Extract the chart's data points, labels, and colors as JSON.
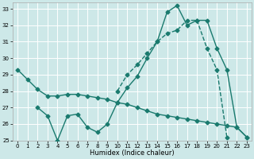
{
  "xlabel": "Humidex (Indice chaleur)",
  "bg_color": "#cde8e8",
  "grid_color": "#ffffff",
  "line_color": "#1a7a6e",
  "xlim": [
    -0.5,
    23.5
  ],
  "ylim": [
    25,
    33.4
  ],
  "xticks": [
    0,
    1,
    2,
    3,
    4,
    5,
    6,
    7,
    8,
    9,
    10,
    11,
    12,
    13,
    14,
    15,
    16,
    17,
    18,
    19,
    20,
    21,
    22,
    23
  ],
  "yticks": [
    25,
    26,
    27,
    28,
    29,
    30,
    31,
    32,
    33
  ],
  "line1_x": [
    0,
    1,
    2,
    3,
    4,
    5,
    6,
    7,
    8,
    9,
    10,
    11,
    12,
    13,
    14,
    15,
    16,
    17,
    18,
    19,
    20,
    21,
    22,
    23
  ],
  "line1_y": [
    29.3,
    28.7,
    28.1,
    27.7,
    27.7,
    27.8,
    27.8,
    27.7,
    27.6,
    27.5,
    27.3,
    27.2,
    27.0,
    26.8,
    26.6,
    26.5,
    26.4,
    26.3,
    26.2,
    26.1,
    26.0,
    25.9,
    25.8,
    25.2
  ],
  "line2_x": [
    2,
    3,
    4,
    5,
    6,
    7,
    8,
    9,
    10,
    11,
    12,
    13,
    14,
    15,
    16,
    17,
    18,
    19,
    20,
    21,
    22,
    23
  ],
  "line2_y": [
    27.0,
    26.5,
    25.0,
    26.5,
    26.6,
    25.8,
    25.5,
    26.0,
    27.3,
    28.2,
    28.9,
    30.0,
    31.0,
    32.8,
    33.2,
    32.0,
    32.3,
    32.3,
    30.6,
    29.3,
    25.8,
    25.2
  ],
  "line3_x": [
    10,
    11,
    12,
    13,
    14,
    15,
    16,
    17,
    18,
    19,
    20,
    21
  ],
  "line3_y": [
    28.0,
    29.0,
    29.6,
    30.3,
    31.0,
    31.5,
    31.7,
    32.3,
    32.3,
    30.6,
    29.3,
    25.2
  ]
}
